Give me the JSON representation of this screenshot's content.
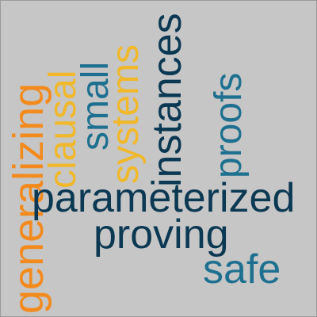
{
  "palette": {
    "background": "#c6c6c6",
    "orange": "#f38a1d",
    "yellow": "#f1b82a",
    "blue": "#1e7090",
    "navy": "#0b3852"
  },
  "words": [
    {
      "id": "generalizing",
      "text": "generalizing",
      "color": "#f38a1d"
    },
    {
      "id": "clausal",
      "text": "clausal",
      "color": "#f1b82a"
    },
    {
      "id": "small",
      "text": "small",
      "color": "#1e7090"
    },
    {
      "id": "systems",
      "text": "systems",
      "color": "#f1b82a"
    },
    {
      "id": "instances",
      "text": "instances",
      "color": "#0b3852"
    },
    {
      "id": "proofs",
      "text": "proofs",
      "color": "#1e7090"
    },
    {
      "id": "parameterized",
      "text": "parameterized",
      "color": "#0b3852"
    },
    {
      "id": "proving",
      "text": "proving",
      "color": "#0b3852"
    },
    {
      "id": "safe",
      "text": "safe",
      "color": "#1e7090"
    }
  ]
}
